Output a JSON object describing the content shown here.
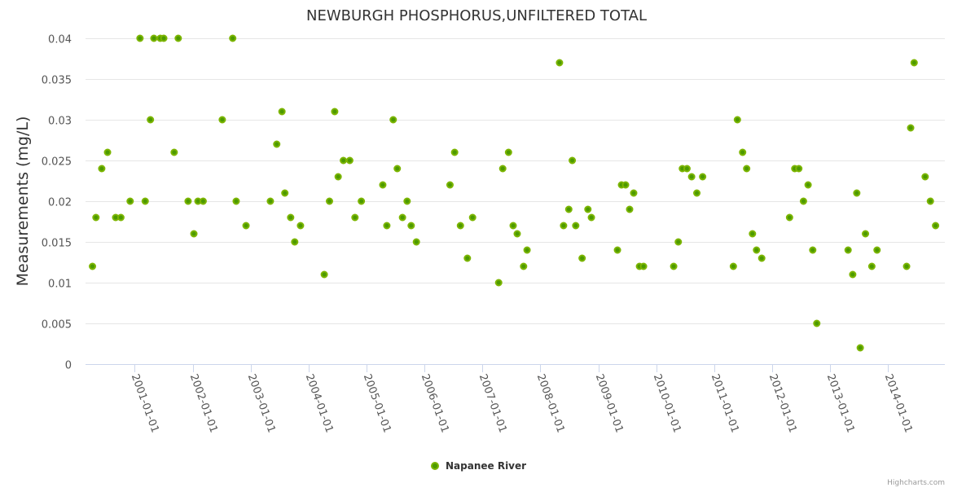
{
  "chart_data": {
    "type": "scatter",
    "title": "NEWBURGH PHOSPHORUS,UNFILTERED TOTAL",
    "xlabel": "",
    "ylabel": "Measurements (mg/L)",
    "ylim": [
      0,
      0.04
    ],
    "xlim": [
      2000.15,
      2014.98
    ],
    "x_unit": "decimal year",
    "yticks": [
      "0",
      "0.005",
      "0.01",
      "0.015",
      "0.02",
      "0.025",
      "0.03",
      "0.035",
      "0.04"
    ],
    "xticks": [
      {
        "label": "2001-01-01",
        "x": 2001
      },
      {
        "label": "2002-01-01",
        "x": 2002
      },
      {
        "label": "2003-01-01",
        "x": 2003
      },
      {
        "label": "2004-01-01",
        "x": 2004
      },
      {
        "label": "2005-01-01",
        "x": 2005
      },
      {
        "label": "2006-01-01",
        "x": 2006
      },
      {
        "label": "2007-01-01",
        "x": 2007
      },
      {
        "label": "2008-01-01",
        "x": 2008
      },
      {
        "label": "2009-01-01",
        "x": 2009
      },
      {
        "label": "2010-01-01",
        "x": 2010
      },
      {
        "label": "2011-01-01",
        "x": 2011
      },
      {
        "label": "2012-01-01",
        "x": 2012
      },
      {
        "label": "2013-01-01",
        "x": 2013
      },
      {
        "label": "2014-01-01",
        "x": 2014
      }
    ],
    "grid": true,
    "legend_position": "bottom-center",
    "series": [
      {
        "name": "Napanee River",
        "color": "#7cb500",
        "points": [
          [
            2000.27,
            0.012
          ],
          [
            2000.33,
            0.018
          ],
          [
            2000.43,
            0.024
          ],
          [
            2000.53,
            0.026
          ],
          [
            2000.67,
            0.018
          ],
          [
            2000.76,
            0.018
          ],
          [
            2000.92,
            0.02
          ],
          [
            2001.09,
            0.04
          ],
          [
            2001.18,
            0.02
          ],
          [
            2001.27,
            0.03
          ],
          [
            2001.33,
            0.04
          ],
          [
            2001.44,
            0.04
          ],
          [
            2001.5,
            0.04
          ],
          [
            2001.68,
            0.026
          ],
          [
            2001.75,
            0.04
          ],
          [
            2001.92,
            0.02
          ],
          [
            2002.02,
            0.016
          ],
          [
            2002.09,
            0.02
          ],
          [
            2002.18,
            0.02
          ],
          [
            2002.51,
            0.03
          ],
          [
            2002.69,
            0.04
          ],
          [
            2002.75,
            0.02
          ],
          [
            2002.92,
            0.017
          ],
          [
            2003.34,
            0.02
          ],
          [
            2003.45,
            0.027
          ],
          [
            2003.54,
            0.031
          ],
          [
            2003.59,
            0.021
          ],
          [
            2003.69,
            0.018
          ],
          [
            2003.76,
            0.015
          ],
          [
            2003.86,
            0.017
          ],
          [
            2004.27,
            0.011
          ],
          [
            2004.36,
            0.02
          ],
          [
            2004.45,
            0.031
          ],
          [
            2004.51,
            0.023
          ],
          [
            2004.6,
            0.025
          ],
          [
            2004.71,
            0.025
          ],
          [
            2004.8,
            0.018
          ],
          [
            2004.91,
            0.02
          ],
          [
            2005.28,
            0.022
          ],
          [
            2005.35,
            0.017
          ],
          [
            2005.46,
            0.03
          ],
          [
            2005.53,
            0.024
          ],
          [
            2005.62,
            0.018
          ],
          [
            2005.7,
            0.02
          ],
          [
            2005.77,
            0.017
          ],
          [
            2005.86,
            0.015
          ],
          [
            2006.44,
            0.022
          ],
          [
            2006.52,
            0.026
          ],
          [
            2006.62,
            0.017
          ],
          [
            2006.74,
            0.013
          ],
          [
            2006.83,
            0.018
          ],
          [
            2007.28,
            0.01
          ],
          [
            2007.35,
            0.024
          ],
          [
            2007.45,
            0.026
          ],
          [
            2007.53,
            0.017
          ],
          [
            2007.6,
            0.016
          ],
          [
            2007.71,
            0.012
          ],
          [
            2007.77,
            0.014
          ],
          [
            2008.33,
            0.037
          ],
          [
            2008.4,
            0.017
          ],
          [
            2008.49,
            0.019
          ],
          [
            2008.55,
            0.025
          ],
          [
            2008.61,
            0.017
          ],
          [
            2008.72,
            0.013
          ],
          [
            2008.82,
            0.019
          ],
          [
            2008.88,
            0.018
          ],
          [
            2009.33,
            0.014
          ],
          [
            2009.4,
            0.022
          ],
          [
            2009.47,
            0.022
          ],
          [
            2009.54,
            0.019
          ],
          [
            2009.61,
            0.021
          ],
          [
            2009.71,
            0.012
          ],
          [
            2009.78,
            0.012
          ],
          [
            2010.3,
            0.012
          ],
          [
            2010.38,
            0.015
          ],
          [
            2010.45,
            0.024
          ],
          [
            2010.53,
            0.024
          ],
          [
            2010.61,
            0.023
          ],
          [
            2010.7,
            0.021
          ],
          [
            2010.8,
            0.023
          ],
          [
            2011.33,
            0.012
          ],
          [
            2011.4,
            0.03
          ],
          [
            2011.49,
            0.026
          ],
          [
            2011.56,
            0.024
          ],
          [
            2011.66,
            0.016
          ],
          [
            2011.73,
            0.014
          ],
          [
            2011.82,
            0.013
          ],
          [
            2012.3,
            0.018
          ],
          [
            2012.39,
            0.024
          ],
          [
            2012.46,
            0.024
          ],
          [
            2012.54,
            0.02
          ],
          [
            2012.62,
            0.022
          ],
          [
            2012.7,
            0.014
          ],
          [
            2012.77,
            0.005
          ],
          [
            2013.31,
            0.014
          ],
          [
            2013.39,
            0.011
          ],
          [
            2013.46,
            0.021
          ],
          [
            2013.52,
            0.002
          ],
          [
            2013.61,
            0.016
          ],
          [
            2013.72,
            0.012
          ],
          [
            2013.81,
            0.014
          ],
          [
            2014.32,
            0.012
          ],
          [
            2014.39,
            0.029
          ],
          [
            2014.45,
            0.037
          ],
          [
            2014.64,
            0.023
          ],
          [
            2014.73,
            0.02
          ],
          [
            2014.82,
            0.017
          ]
        ]
      }
    ]
  },
  "credits": "Highcharts.com"
}
